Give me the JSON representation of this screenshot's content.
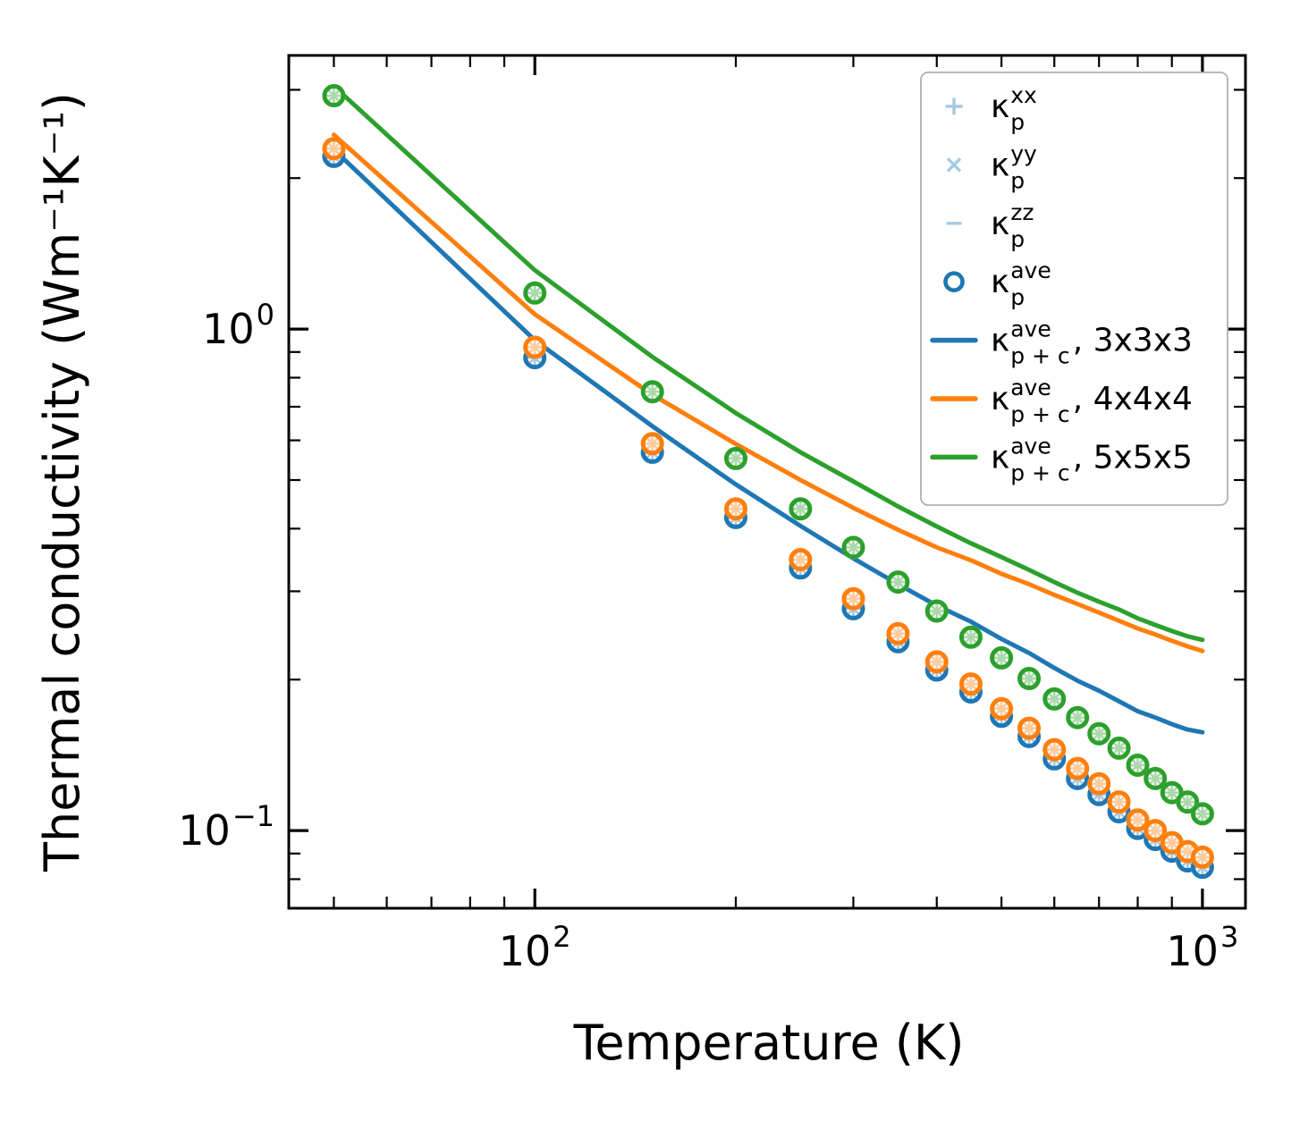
{
  "colors": {
    "blue": "#1f77b4",
    "orange": "#ff7f0e",
    "green": "#2ca02c",
    "light_blue": "#a5c9e1",
    "light_orange": "#ffcc9f",
    "light_green": "#abd9ab",
    "axis": "#000000",
    "legend_border": "#b0b0b0",
    "background": "#ffffff"
  },
  "chart_data": {
    "type": "line+scatter",
    "x_label": "Temperature (K)",
    "y_label": "Thermal conductivity (Wm⁻¹K⁻¹)",
    "x_scale": "log",
    "y_scale": "log",
    "x_range": [
      42.8,
      1160
    ],
    "y_range": [
      0.07,
      3.513
    ],
    "grid": false,
    "legend_position": "upper right",
    "x_ticks": {
      "major": [
        {
          "value": 100,
          "base": "10",
          "exp": "2"
        },
        {
          "value": 1000,
          "base": "10",
          "exp": "3"
        }
      ],
      "minor": [
        50,
        60,
        70,
        80,
        90,
        200,
        300,
        400,
        500,
        600,
        700,
        800,
        900
      ]
    },
    "y_ticks": {
      "major": [
        {
          "value": 1,
          "base": "10",
          "exp": "0"
        },
        {
          "value": 0.1,
          "base": "10",
          "exp": "−1"
        }
      ],
      "minor": [
        3,
        2,
        0.9,
        0.8,
        0.7,
        0.6,
        0.5,
        0.4,
        0.3,
        0.2,
        0.09,
        0.08,
        0.07
      ]
    },
    "temperatures": [
      50,
      100,
      150,
      200,
      250,
      300,
      350,
      400,
      450,
      500,
      550,
      600,
      650,
      700,
      750,
      800,
      850,
      900,
      950,
      1000
    ],
    "component_markers": {
      "components": [
        "xx",
        "yy",
        "zz"
      ],
      "symbols": [
        "+",
        "×",
        "−"
      ],
      "note": "tensor-component markers coincide with the ave circles, drawn as light spokes inside each circle"
    },
    "scatter_series": [
      {
        "name": "kappa_p_ave_3x3x3",
        "label": "κ_p^ave (3x3x3)",
        "color": "blue",
        "component_tint": "light_blue",
        "values": [
          2.21,
          0.877,
          0.568,
          0.421,
          0.334,
          0.277,
          0.238,
          0.209,
          0.189,
          0.169,
          0.154,
          0.139,
          0.127,
          0.118,
          0.109,
          0.101,
          0.096,
          0.091,
          0.087,
          0.0845
        ]
      },
      {
        "name": "kappa_p_ave_4x4x4",
        "label": "κ_p^ave (4x4x4)",
        "color": "orange",
        "component_tint": "light_orange",
        "values": [
          2.29,
          0.92,
          0.591,
          0.438,
          0.347,
          0.29,
          0.247,
          0.217,
          0.196,
          0.175,
          0.16,
          0.145,
          0.133,
          0.124,
          0.114,
          0.105,
          0.1,
          0.0946,
          0.0908,
          0.0885
        ]
      },
      {
        "name": "kappa_p_ave_5x5x5",
        "label": "κ_p^ave (5x5x5)",
        "color": "green",
        "component_tint": "light_green",
        "values": [
          2.92,
          1.18,
          0.75,
          0.552,
          0.438,
          0.367,
          0.313,
          0.274,
          0.243,
          0.221,
          0.201,
          0.183,
          0.168,
          0.156,
          0.146,
          0.135,
          0.127,
          0.119,
          0.114,
          0.108
        ]
      }
    ],
    "line_series": [
      {
        "name": "kappa_p_plus_c_ave_3x3x3",
        "label": "κ_p+c^ave, 3x3x3",
        "color": "blue",
        "values": [
          2.28,
          0.95,
          0.64,
          0.49,
          0.405,
          0.349,
          0.31,
          0.281,
          0.261,
          0.241,
          0.226,
          0.211,
          0.199,
          0.19,
          0.181,
          0.173,
          0.168,
          0.163,
          0.159,
          0.157
        ]
      },
      {
        "name": "kappa_p_plus_c_ave_4x4x4",
        "label": "κ_p+c^ave, 4x4x4",
        "color": "orange",
        "values": [
          2.44,
          1.07,
          0.74,
          0.59,
          0.5,
          0.44,
          0.398,
          0.367,
          0.346,
          0.325,
          0.31,
          0.295,
          0.283,
          0.272,
          0.262,
          0.253,
          0.246,
          0.239,
          0.233,
          0.228
        ]
      },
      {
        "name": "kappa_p_plus_c_ave_5x5x5",
        "label": "κ_p+c^ave, 5x5x5",
        "color": "green",
        "values": [
          3.05,
          1.31,
          0.88,
          0.68,
          0.568,
          0.497,
          0.443,
          0.404,
          0.374,
          0.351,
          0.331,
          0.313,
          0.298,
          0.286,
          0.276,
          0.265,
          0.257,
          0.25,
          0.244,
          0.24
        ]
      }
    ]
  },
  "legend": {
    "entries": [
      {
        "marker": "plus",
        "color": "light_blue",
        "kappa": "κ",
        "sup": "xx",
        "sub": "p",
        "suffix": ""
      },
      {
        "marker": "cross",
        "color": "light_blue",
        "kappa": "κ",
        "sup": "yy",
        "sub": "p",
        "suffix": ""
      },
      {
        "marker": "hline",
        "color": "light_blue",
        "kappa": "κ",
        "sup": "zz",
        "sub": "p",
        "suffix": ""
      },
      {
        "marker": "circle",
        "color": "blue",
        "kappa": "κ",
        "sup": "ave",
        "sub": "p",
        "suffix": ""
      },
      {
        "marker": "line",
        "color": "blue",
        "kappa": "κ",
        "sup": "ave",
        "sub": "p + c",
        "suffix": ", 3x3x3"
      },
      {
        "marker": "line",
        "color": "orange",
        "kappa": "κ",
        "sup": "ave",
        "sub": "p + c",
        "suffix": ", 4x4x4"
      },
      {
        "marker": "line",
        "color": "green",
        "kappa": "κ",
        "sup": "ave",
        "sub": "p + c",
        "suffix": ", 5x5x5"
      }
    ]
  }
}
